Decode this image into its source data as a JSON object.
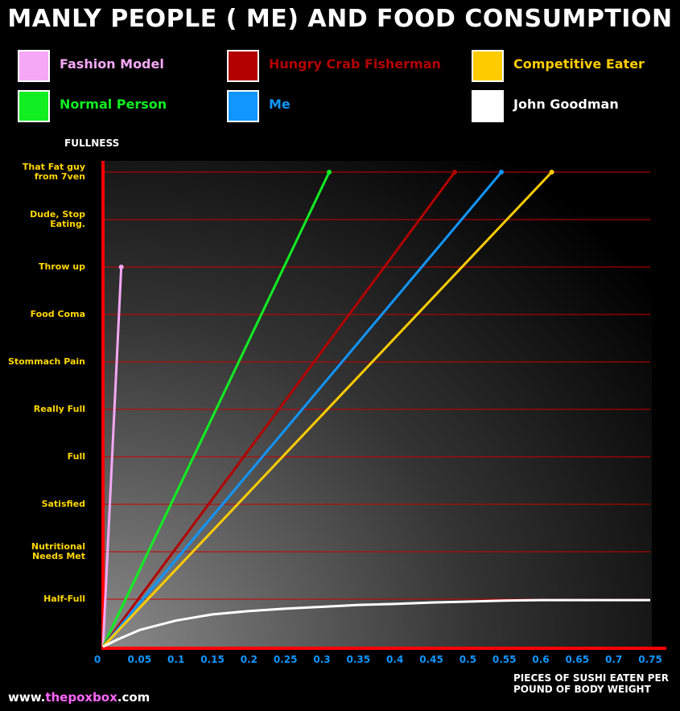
{
  "chart_data": {
    "type": "line",
    "title": "MANLY PEOPLE ( ME) AND FOOD CONSUMPTION",
    "ylabel": "FULLNESS",
    "xlabel": "PIECES OF SUSHI EATEN PER POUND OF BODY WEIGHT",
    "xlim": [
      0,
      0.75
    ],
    "x_ticks": [
      "0",
      "0.05",
      "0.1",
      "0.15",
      "0.2",
      "0.25",
      "0.3",
      "0.35",
      "0.4",
      "0.45",
      "0.5",
      "0.55",
      "0.6",
      "0.65",
      "0.7",
      "0.75"
    ],
    "y_categories": [
      "Half-Full",
      "Nutritional\nNeeds Met",
      "Satisfied",
      "Full",
      "Really Full",
      "Stommach Pain",
      "Food Coma",
      "Throw up",
      "Dude, Stop\nEating.",
      "That Fat guy\nfrom 7ven"
    ],
    "ylim": [
      0,
      10
    ],
    "grid": "horizontal",
    "series": [
      {
        "name": "Fashion Model",
        "color": "#f5a8f5",
        "points": [
          [
            0,
            0
          ],
          [
            0.025,
            8
          ]
        ]
      },
      {
        "name": "Normal Person",
        "color": "#11ee22",
        "points": [
          [
            0,
            0
          ],
          [
            0.31,
            10
          ]
        ]
      },
      {
        "name": "Hungry Crab Fisherman",
        "color": "#b30000",
        "points": [
          [
            0,
            0
          ],
          [
            0.482,
            10
          ]
        ]
      },
      {
        "name": "Me",
        "color": "#1196ff",
        "points": [
          [
            0,
            0
          ],
          [
            0.546,
            10
          ]
        ]
      },
      {
        "name": "Competitive Eater",
        "color": "#ffcc00",
        "points": [
          [
            0,
            0
          ],
          [
            0.615,
            10
          ]
        ]
      },
      {
        "name": "John Goodman",
        "color": "#ffffff",
        "points": [
          [
            0,
            0
          ],
          [
            0.02,
            0.15
          ],
          [
            0.05,
            0.35
          ],
          [
            0.1,
            0.55
          ],
          [
            0.15,
            0.68
          ],
          [
            0.2,
            0.75
          ],
          [
            0.25,
            0.8
          ],
          [
            0.3,
            0.84
          ],
          [
            0.35,
            0.88
          ],
          [
            0.4,
            0.9
          ],
          [
            0.45,
            0.93
          ],
          [
            0.5,
            0.95
          ],
          [
            0.55,
            0.97
          ],
          [
            0.6,
            0.98
          ],
          [
            0.65,
            0.98
          ],
          [
            0.7,
            0.98
          ],
          [
            0.75,
            0.98
          ]
        ]
      }
    ]
  },
  "footer": {
    "prefix": "www.",
    "accent": "the",
    "accent2": "poxbox",
    "suffix": ".com"
  }
}
